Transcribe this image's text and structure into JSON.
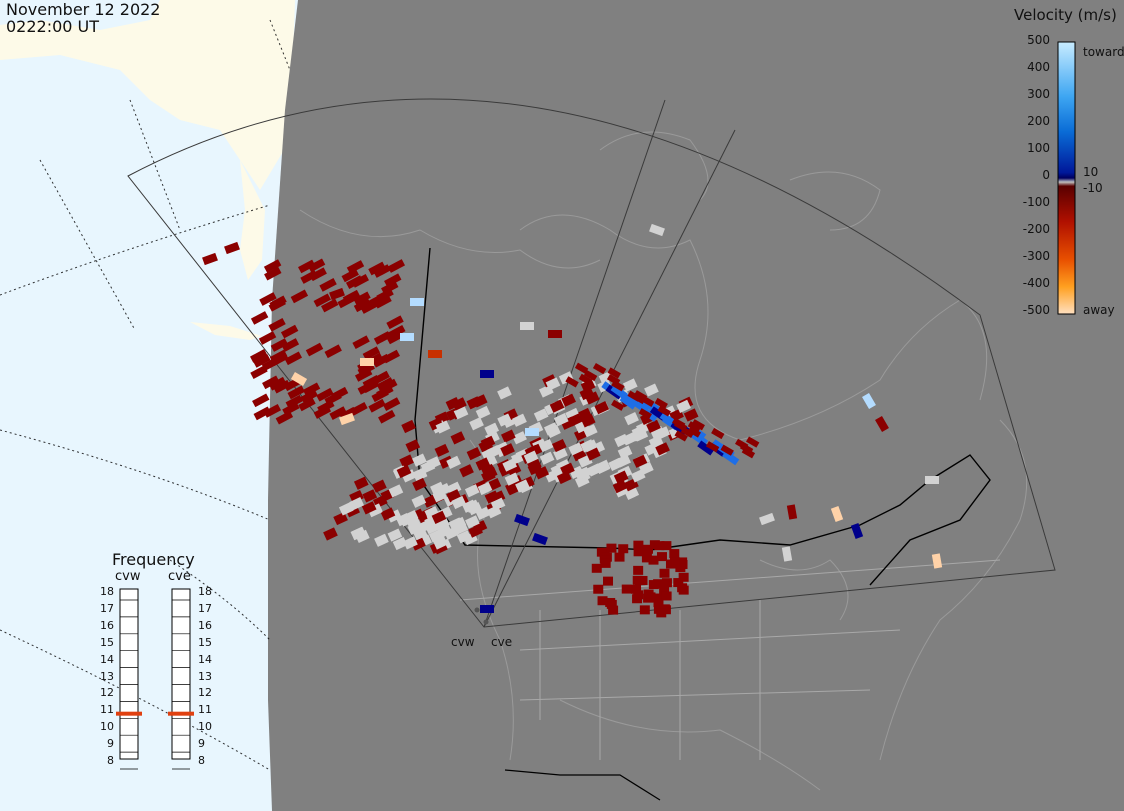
{
  "header": {
    "date": "November 12 2022",
    "time": "0222:00 UT"
  },
  "velocity_scale": {
    "title": "Velocity (m/s)",
    "ticks": [
      "500",
      "400",
      "300",
      "200",
      "100",
      "0",
      "-100",
      "-200",
      "-300",
      "-400",
      "-500"
    ],
    "near_zero_positive": "10",
    "near_zero_negative": "-10",
    "toward_label": "toward",
    "away_label": "away"
  },
  "frequency": {
    "title": "Frequency",
    "radars": [
      {
        "code": "cvw",
        "value_mhz": 10.8
      },
      {
        "code": "cve",
        "value_mhz": 10.8
      }
    ],
    "ticks": [
      "18",
      "17",
      "16",
      "15",
      "14",
      "13",
      "12",
      "11",
      "10",
      "9",
      "8"
    ],
    "marker_color": "#e04010"
  },
  "radars": [
    {
      "code": "cvw"
    },
    {
      "code": "cve"
    }
  ],
  "colors": {
    "ocean": "#e8f6fe",
    "land": "#fdfae8",
    "night": "#808080",
    "ground_scatter": "#d2d2d2",
    "away_dark": "#8b0000",
    "toward_dark": "#00008b",
    "toward_mid": "#1e6ee6",
    "toward_light": "#b4dcff",
    "away_light": "#ffd2a8"
  }
}
